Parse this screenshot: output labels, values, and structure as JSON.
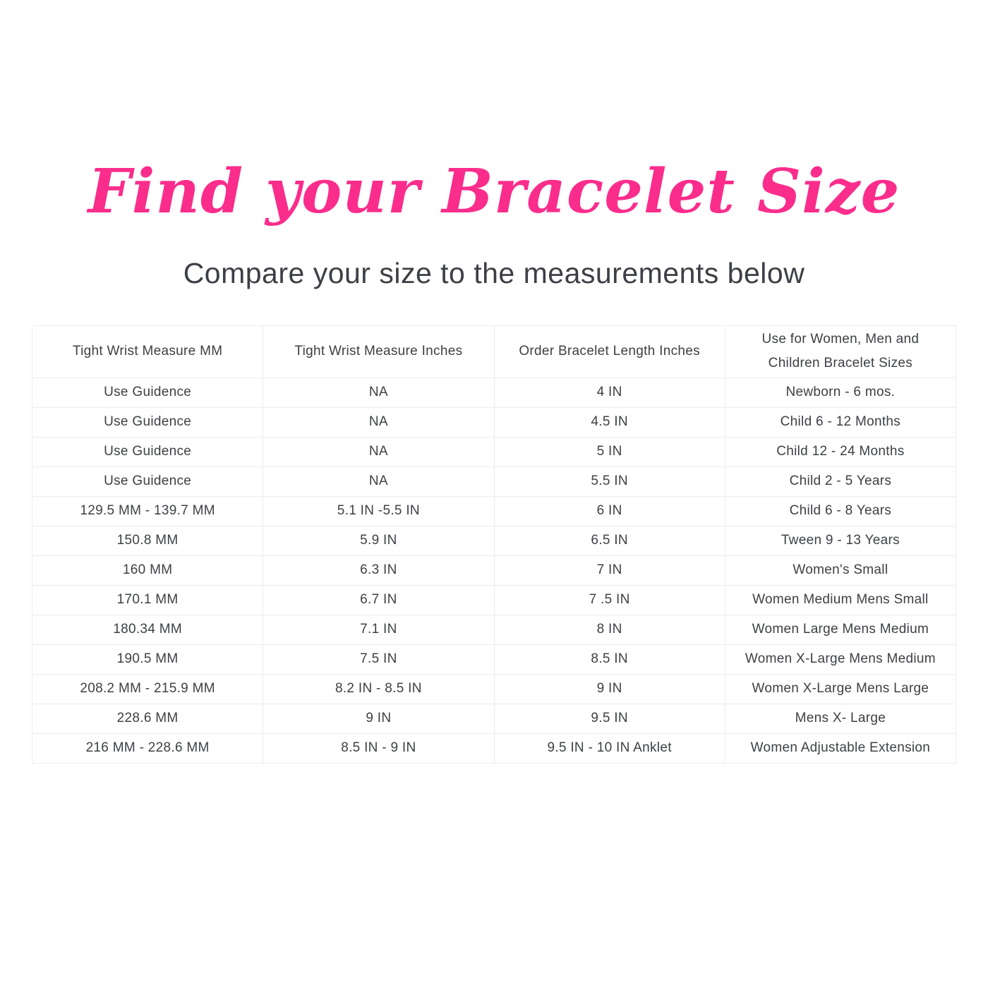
{
  "page": {
    "title": "Find your Bracelet Size",
    "subtitle": "Compare your size to the measurements below",
    "accent_color": "#fa2d8c",
    "text_color": "#3d4045",
    "border_color": "#ececec",
    "background_color": "#ffffff"
  },
  "table": {
    "columns": [
      "Tight Wrist Measure MM",
      "Tight Wrist Measure Inches",
      "Order Bracelet Length Inches",
      "Use for Women, Men and Children Bracelet Sizes"
    ],
    "rows": [
      [
        "Use Guidence",
        "NA",
        "4 IN",
        "Newborn - 6 mos."
      ],
      [
        "Use Guidence",
        "NA",
        "4.5 IN",
        "Child 6 - 12 Months"
      ],
      [
        "Use Guidence",
        "NA",
        "5 IN",
        "Child 12 - 24 Months"
      ],
      [
        "Use Guidence",
        "NA",
        "5.5 IN",
        "Child 2 - 5 Years"
      ],
      [
        "129.5 MM - 139.7 MM",
        "5.1 IN -5.5 IN",
        "6 IN",
        "Child 6 - 8 Years"
      ],
      [
        "150.8 MM",
        "5.9 IN",
        "6.5 IN",
        "Tween 9 - 13 Years"
      ],
      [
        "160 MM",
        "6.3 IN",
        "7 IN",
        "Women's Small"
      ],
      [
        "170.1 MM",
        "6.7 IN",
        "7 .5 IN",
        "Women Medium Mens Small"
      ],
      [
        "180.34 MM",
        "7.1 IN",
        "8 IN",
        "Women Large Mens Medium"
      ],
      [
        "190.5 MM",
        "7.5 IN",
        "8.5 IN",
        "Women X-Large Mens Medium"
      ],
      [
        "208.2 MM - 215.9 MM",
        "8.2 IN - 8.5 IN",
        "9 IN",
        "Women X-Large Mens Large"
      ],
      [
        "228.6 MM",
        "9 IN",
        "9.5 IN",
        "Mens X- Large"
      ],
      [
        "216 MM - 228.6 MM",
        "8.5 IN - 9 IN",
        "9.5 IN - 10 IN Anklet",
        "Women Adjustable Extension"
      ]
    ]
  }
}
